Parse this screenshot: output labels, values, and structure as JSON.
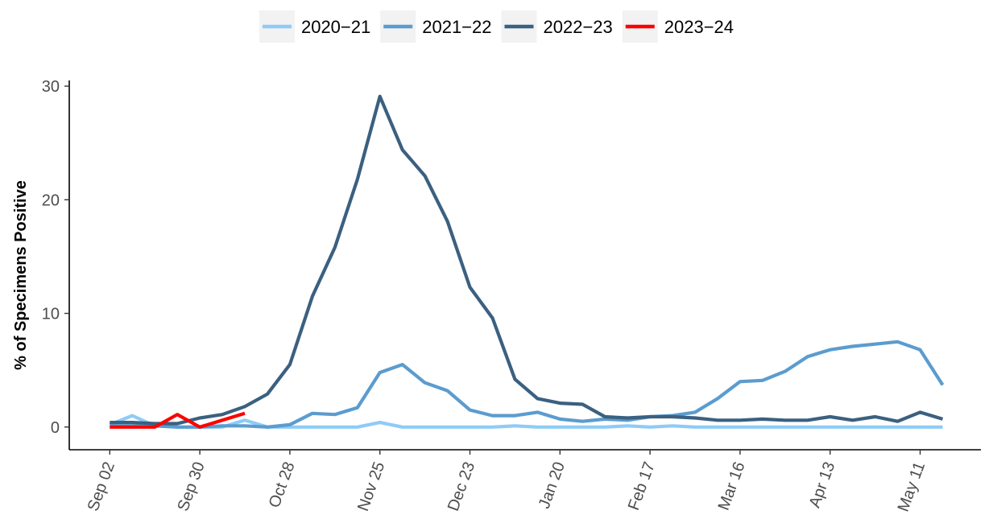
{
  "chart_data": {
    "type": "line",
    "ylabel": "% of Specimens Positive",
    "xlabel": "",
    "title": "",
    "ylim": [
      -2,
      30.5
    ],
    "y_ticks": [
      0,
      10,
      20,
      30
    ],
    "x_ticks": [
      "Sep 02",
      "Sep 30",
      "Oct 28",
      "Nov 25",
      "Dec 23",
      "Jan 20",
      "Feb 17",
      "Mar 16",
      "Apr 13",
      "May 11"
    ],
    "x_tick_weeks": [
      0,
      4,
      8,
      12,
      16,
      20,
      24,
      28,
      32,
      36
    ],
    "x_unit": "week",
    "xlim_weeks": [
      -1.8,
      38.7
    ],
    "grid": false,
    "legend_position": "top",
    "series": [
      {
        "name": "2020−21",
        "color": "#8ecbf7",
        "values": [
          0.2,
          1.0,
          0.1,
          0.0,
          0.0,
          0.0,
          0.6,
          0.0,
          0.0,
          0.0,
          0.0,
          0.0,
          0.4,
          0.0,
          0.0,
          0.0,
          0.0,
          0.0,
          0.1,
          0.0,
          0.0,
          0.0,
          0.0,
          0.1,
          0.0,
          0.1,
          0.0,
          0.0,
          0.0,
          0.0,
          0.0,
          0.0,
          0.0,
          0.0,
          0.0,
          0.0,
          0.0,
          0.0
        ]
      },
      {
        "name": "2021−22",
        "color": "#5b9ccf",
        "values": [
          0.1,
          0.1,
          0.1,
          0.0,
          0.0,
          0.1,
          0.1,
          0.0,
          0.2,
          1.2,
          1.1,
          1.7,
          4.8,
          5.5,
          3.9,
          3.2,
          1.5,
          1.0,
          1.0,
          1.3,
          0.7,
          0.5,
          0.7,
          0.6,
          0.9,
          1.0,
          1.3,
          2.5,
          4.0,
          4.1,
          4.9,
          6.2,
          6.8,
          7.1,
          7.3,
          7.5,
          6.8,
          3.7
        ]
      },
      {
        "name": "2022−23",
        "color": "#3b6080",
        "values": [
          0.4,
          0.4,
          0.3,
          0.3,
          0.8,
          1.1,
          1.8,
          2.9,
          5.5,
          11.5,
          15.8,
          21.8,
          29.1,
          24.4,
          22.1,
          18.1,
          12.3,
          9.6,
          4.2,
          2.5,
          2.1,
          2.0,
          0.9,
          0.8,
          0.9,
          0.9,
          0.8,
          0.6,
          0.6,
          0.7,
          0.6,
          0.6,
          0.9,
          0.6,
          0.9,
          0.5,
          1.3,
          0.7
        ]
      },
      {
        "name": "2023−24",
        "color": "#ff0000",
        "values": [
          0.0,
          0.0,
          0.0,
          1.1,
          0.0,
          0.6,
          1.2
        ]
      }
    ]
  }
}
